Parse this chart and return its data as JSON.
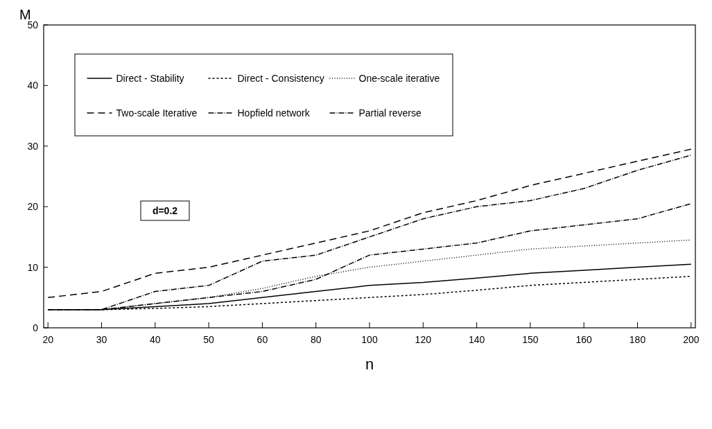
{
  "chart_data": {
    "type": "line",
    "xlabel": "n",
    "ylabel": "M",
    "categories": [
      "20",
      "30",
      "40",
      "50",
      "60",
      "80",
      "100",
      "120",
      "140",
      "150",
      "160",
      "180",
      "200"
    ],
    "ylim": [
      0,
      50
    ],
    "yticks": [
      0,
      10,
      20,
      30,
      40,
      50
    ],
    "grid": false,
    "legend": "top left",
    "marker": "none",
    "annotations": [
      "d=0.2"
    ],
    "series": [
      {
        "name": "Direct - Stability",
        "color": "#000000",
        "line_style": "solid",
        "values": [
          3,
          3,
          3.5,
          4,
          5,
          6,
          7,
          7.5,
          8.2,
          9,
          9.5,
          10,
          10.5
        ]
      },
      {
        "name": "Direct - Consistency",
        "color": "#000000",
        "line_style": "dashed",
        "values": [
          3,
          3,
          3.2,
          3.5,
          4,
          4.5,
          5,
          5.5,
          6.2,
          7,
          7.5,
          8,
          8.5
        ]
      },
      {
        "name": "One-scale iterative",
        "color": "#000000",
        "line_style": "dotted",
        "values": [
          3,
          3,
          4,
          5,
          6.5,
          8.5,
          10,
          11,
          12,
          13,
          13.5,
          14,
          14.5
        ]
      },
      {
        "name": "Two-scale Iterative",
        "color": "#000000",
        "line_style": "longdash",
        "values": [
          5,
          6,
          9,
          10,
          12,
          14,
          16,
          19,
          21,
          23.5,
          25.5,
          27.5,
          29.5
        ]
      },
      {
        "name": "Hopfield network",
        "color": "#000000",
        "line_style": "dashdot",
        "values": [
          3,
          3,
          4,
          5,
          6,
          8,
          12,
          13,
          14,
          16,
          17,
          18,
          20.5
        ]
      },
      {
        "name": "Partial reverse",
        "color": "#000000",
        "line_style": "dashdot",
        "values": [
          3,
          3,
          6,
          7,
          11,
          12,
          15,
          18,
          20,
          21,
          23,
          26,
          28.5
        ]
      }
    ]
  }
}
